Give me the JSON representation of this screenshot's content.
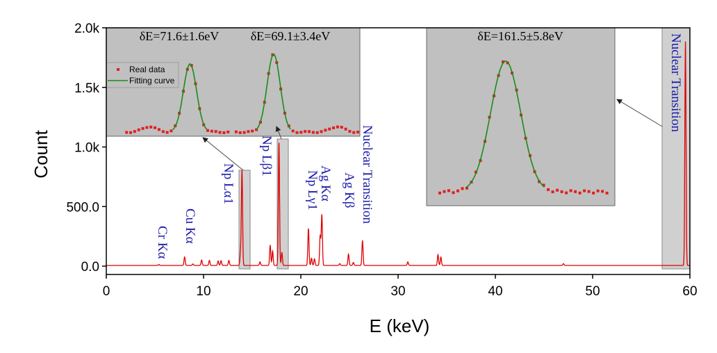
{
  "chart_data": {
    "type": "line",
    "xlabel": "E (keV)",
    "ylabel": "Count",
    "xlim": [
      0,
      60
    ],
    "ylim": [
      0,
      2000
    ],
    "xticks": [
      0,
      10,
      20,
      30,
      40,
      50,
      60
    ],
    "xtick_labels": [
      "0",
      "10",
      "20",
      "30",
      "40",
      "50",
      "60"
    ],
    "yticks": [
      0,
      500,
      1000,
      1500,
      2000
    ],
    "ytick_labels": [
      "0.0",
      "500.0",
      "1.0k",
      "1.5k",
      "2.0k"
    ],
    "series_color": "#e00000",
    "baseline_count": 6,
    "peaks": [
      {
        "e": 5.4,
        "count": 8
      },
      {
        "e": 8.05,
        "count": 72
      },
      {
        "e": 8.9,
        "count": 12
      },
      {
        "e": 9.8,
        "count": 45
      },
      {
        "e": 10.6,
        "count": 42
      },
      {
        "e": 11.5,
        "count": 38
      },
      {
        "e": 11.8,
        "count": 40
      },
      {
        "e": 12.6,
        "count": 42
      },
      {
        "e": 13.8,
        "count": 110
      },
      {
        "e": 13.95,
        "count": 800
      },
      {
        "e": 15.8,
        "count": 30
      },
      {
        "e": 16.85,
        "count": 170
      },
      {
        "e": 17.1,
        "count": 120
      },
      {
        "e": 17.75,
        "count": 1040
      },
      {
        "e": 18.05,
        "count": 110
      },
      {
        "e": 20.78,
        "count": 310
      },
      {
        "e": 21.1,
        "count": 60
      },
      {
        "e": 21.4,
        "count": 55
      },
      {
        "e": 21.99,
        "count": 250
      },
      {
        "e": 22.16,
        "count": 425
      },
      {
        "e": 24.0,
        "count": 15
      },
      {
        "e": 24.9,
        "count": 95
      },
      {
        "e": 25.4,
        "count": 25
      },
      {
        "e": 26.34,
        "count": 210
      },
      {
        "e": 31.0,
        "count": 30
      },
      {
        "e": 34.1,
        "count": 90
      },
      {
        "e": 34.4,
        "count": 70
      },
      {
        "e": 47.0,
        "count": 15
      },
      {
        "e": 59.54,
        "count": 1880
      }
    ],
    "annotations": [
      {
        "text": "Cr Kα",
        "e": 5.4
      },
      {
        "text": "Cu Kα",
        "e": 8.05
      },
      {
        "text": "Np Lα1",
        "e": 13.95
      },
      {
        "text": "Np Lβ1",
        "e": 17.75
      },
      {
        "text": "Np Lγ1",
        "e": 20.78
      },
      {
        "text": "Ag Kα",
        "e": 22.16
      },
      {
        "text": "Ag Kβ",
        "e": 24.9
      },
      {
        "text": "Nuclear Transition",
        "e": 26.34
      },
      {
        "text": "Nuclear Transition",
        "e": 59.54
      }
    ],
    "insets": [
      {
        "titles": [
          "δE=71.6±1.6eV",
          "δE=69.1±3.4eV"
        ],
        "legend": [
          "Real data",
          "Fitting curve"
        ],
        "peaks": [
          {
            "pos": 17,
            "rel": 0.08,
            "fit": false
          },
          {
            "pos": 33,
            "rel": 0.98,
            "fit": true
          },
          {
            "pos": 66,
            "rel": 1.12,
            "fit": true
          },
          {
            "pos": 91,
            "rel": 0.08,
            "fit": false
          }
        ]
      },
      {
        "titles": [
          "δE=161.5±5.8eV"
        ],
        "peaks": [
          {
            "pos": 42,
            "rel": 1.0,
            "fit": true
          }
        ]
      }
    ],
    "data_color": "#e02020",
    "fit_color": "#1a8a1a",
    "inset_bg": "#c0c0c0"
  }
}
